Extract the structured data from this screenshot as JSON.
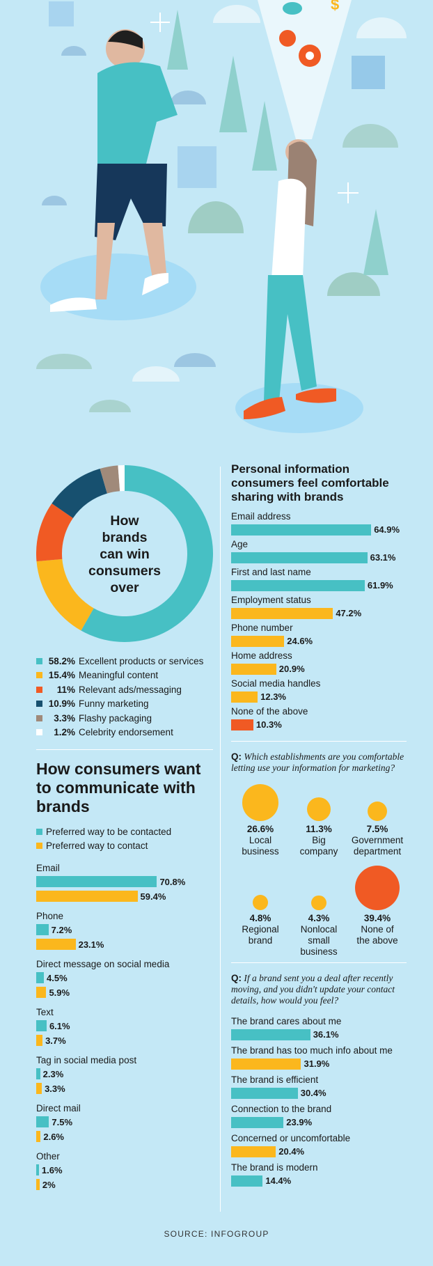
{
  "colors": {
    "background": "#c4e8f6",
    "teal": "#47c0c4",
    "yellow": "#fbb71d",
    "orange": "#f05a24",
    "navy": "#17506f",
    "taupe": "#a08a7a",
    "white": "#ffffff"
  },
  "donut": {
    "title_lines": [
      "How",
      "brands",
      "can win",
      "consumers",
      "over"
    ],
    "chart_data": {
      "type": "pie",
      "title": "How brands can win consumers over",
      "labels": [
        "Excellent products or services",
        "Meaningful content",
        "Relevant ads/messaging",
        "Funny marketing",
        "Flashy packaging",
        "Celebrity endorsement"
      ],
      "values": [
        58.2,
        15.4,
        11,
        10.9,
        3.3,
        1.2
      ],
      "value_labels": [
        "58.2%",
        "15.4%",
        "11%",
        "10.9%",
        "3.3%",
        "1.2%"
      ],
      "colors": [
        "#47c0c4",
        "#fbb71d",
        "#f05a24",
        "#17506f",
        "#a08a7a",
        "#ffffff"
      ]
    }
  },
  "communicate": {
    "title": "How consumers want to communicate with brands",
    "chart_data": {
      "type": "bar",
      "orientation": "horizontal",
      "title": "How consumers want to communicate with brands",
      "categories": [
        "Email",
        "Phone",
        "Direct message on social media",
        "Text",
        "Tag in social media post",
        "Direct mail",
        "Other"
      ],
      "series": [
        {
          "name": "Preferred way to be contacted",
          "color": "#47c0c4",
          "values": [
            70.8,
            7.2,
            4.5,
            6.1,
            2.3,
            7.5,
            1.6
          ],
          "value_labels": [
            "70.8%",
            "7.2%",
            "4.5%",
            "6.1%",
            "2.3%",
            "7.5%",
            "1.6%"
          ]
        },
        {
          "name": "Preferred way to contact",
          "color": "#fbb71d",
          "values": [
            59.4,
            23.1,
            5.9,
            3.7,
            3.3,
            2.6,
            2
          ],
          "value_labels": [
            "59.4%",
            "23.1%",
            "5.9%",
            "3.7%",
            "3.3%",
            "2.6%",
            "2%"
          ]
        }
      ]
    }
  },
  "personal": {
    "title": "Personal information consumers feel comfortable sharing with brands",
    "chart_data": {
      "type": "bar",
      "orientation": "horizontal",
      "title": "Personal information consumers feel comfortable sharing with brands",
      "categories": [
        "Email address",
        "Age",
        "First and last name",
        "Employment status",
        "Phone number",
        "Home address",
        "Social media handles",
        "None of the above"
      ],
      "values": [
        64.9,
        63.1,
        61.9,
        47.2,
        24.6,
        20.9,
        12.3,
        10.3
      ],
      "value_labels": [
        "64.9%",
        "63.1%",
        "61.9%",
        "47.2%",
        "24.6%",
        "20.9%",
        "12.3%",
        "10.3%"
      ],
      "colors": [
        "#47c0c4",
        "#47c0c4",
        "#47c0c4",
        "#fbb71d",
        "#fbb71d",
        "#fbb71d",
        "#fbb71d",
        "#f05a24"
      ]
    }
  },
  "establishments": {
    "q_prefix": "Q:",
    "question": "Which establishments are you comfortable letting use your information for marketing?",
    "chart_data": {
      "type": "bubble",
      "categories": [
        "Local business",
        "Big company",
        "Government department",
        "Regional brand",
        "Nonlocal small business",
        "None of the above"
      ],
      "values": [
        26.6,
        11.3,
        7.5,
        4.8,
        4.3,
        39.4
      ],
      "value_labels": [
        "26.6%",
        "11.3%",
        "7.5%",
        "4.8%",
        "4.3%",
        "39.4%"
      ],
      "label_lines": [
        [
          "Local",
          "business"
        ],
        [
          "Big",
          "company"
        ],
        [
          "Government",
          "department"
        ],
        [
          "Regional",
          "brand"
        ],
        [
          "Nonlocal",
          "small",
          "business"
        ],
        [
          "None of",
          "the above"
        ]
      ],
      "colors": [
        "#fbb71d",
        "#fbb71d",
        "#fbb71d",
        "#fbb71d",
        "#fbb71d",
        "#f05a24"
      ]
    }
  },
  "deal": {
    "q_prefix": "Q:",
    "question": "If a brand sent you a deal after recently moving, and you didn't update your contact details, how would you feel?",
    "chart_data": {
      "type": "bar",
      "orientation": "horizontal",
      "categories": [
        "The brand cares about me",
        "The brand has too much info about me",
        "The brand is efficient",
        "Connection to the brand",
        "Concerned or uncomfortable",
        "The brand is modern"
      ],
      "values": [
        36.1,
        31.9,
        30.4,
        23.9,
        20.4,
        14.4
      ],
      "value_labels": [
        "36.1%",
        "31.9%",
        "30.4%",
        "23.9%",
        "20.4%",
        "14.4%"
      ],
      "colors": [
        "#47c0c4",
        "#fbb71d",
        "#47c0c4",
        "#47c0c4",
        "#fbb71d",
        "#47c0c4"
      ]
    }
  },
  "source": "SOURCE: INFOGROUP"
}
